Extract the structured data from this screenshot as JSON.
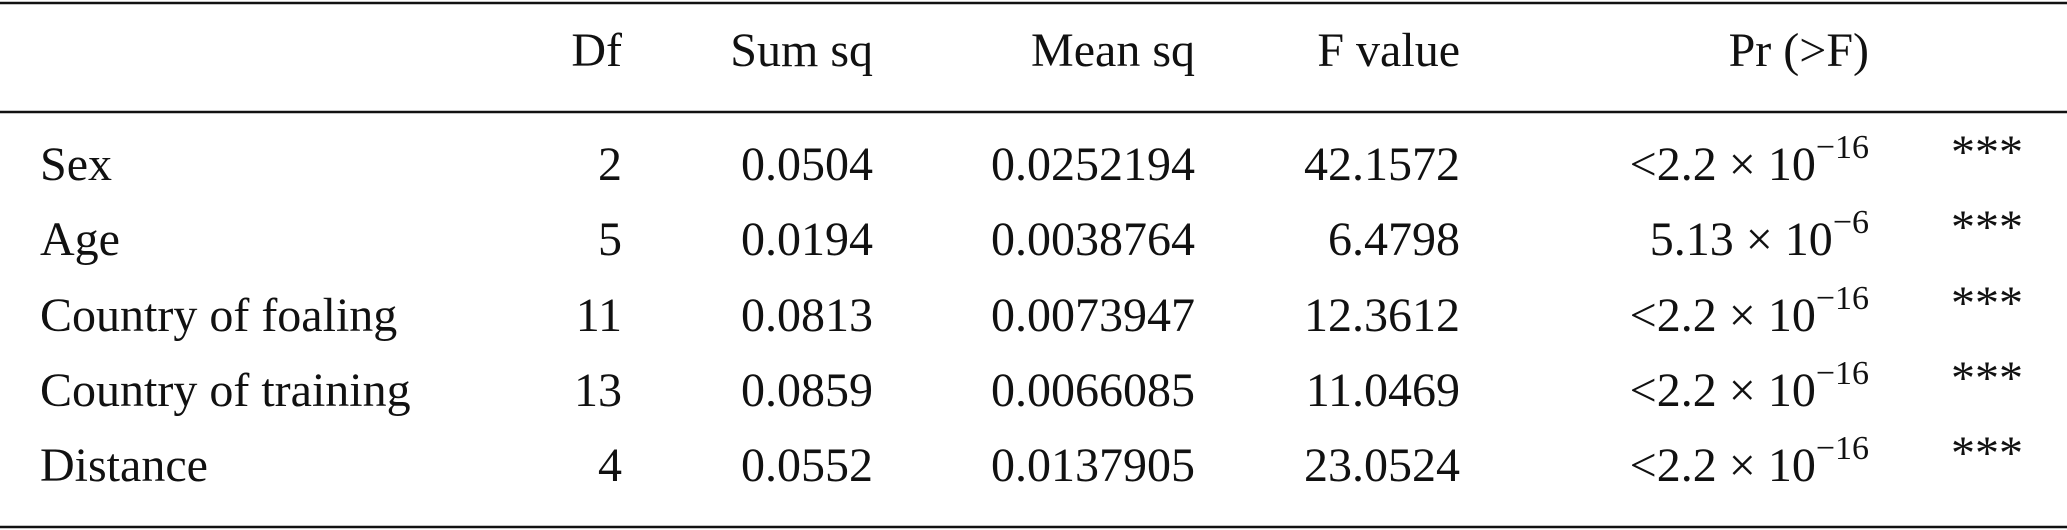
{
  "table": {
    "header": [
      "Df",
      "Sum sq",
      "Mean sq",
      "F value",
      "Pr (>F)"
    ],
    "rows": [
      [
        "Sex",
        "2",
        "0.0504",
        "0.0252194",
        "42.1572",
        {
          "base": "<2.2 × 10",
          "exp": "−16"
        },
        "***"
      ],
      [
        "Age",
        "5",
        "0.0194",
        "0.0038764",
        "6.4798",
        {
          "base": "5.13 × 10",
          "exp": "−6"
        },
        "***"
      ],
      [
        "Country of foaling",
        "11",
        "0.0813",
        "0.0073947",
        "12.3612",
        {
          "base": "<2.2 × 10",
          "exp": "−16"
        },
        "***"
      ],
      [
        "Country of training",
        "13",
        "0.0859",
        "0.0066085",
        "11.0469",
        {
          "base": "<2.2 × 10",
          "exp": "−16"
        },
        "***"
      ],
      [
        "Distance",
        "4",
        "0.0552",
        "0.0137905",
        "23.0524",
        {
          "base": "<2.2 × 10",
          "exp": "−16"
        },
        "***"
      ]
    ]
  }
}
